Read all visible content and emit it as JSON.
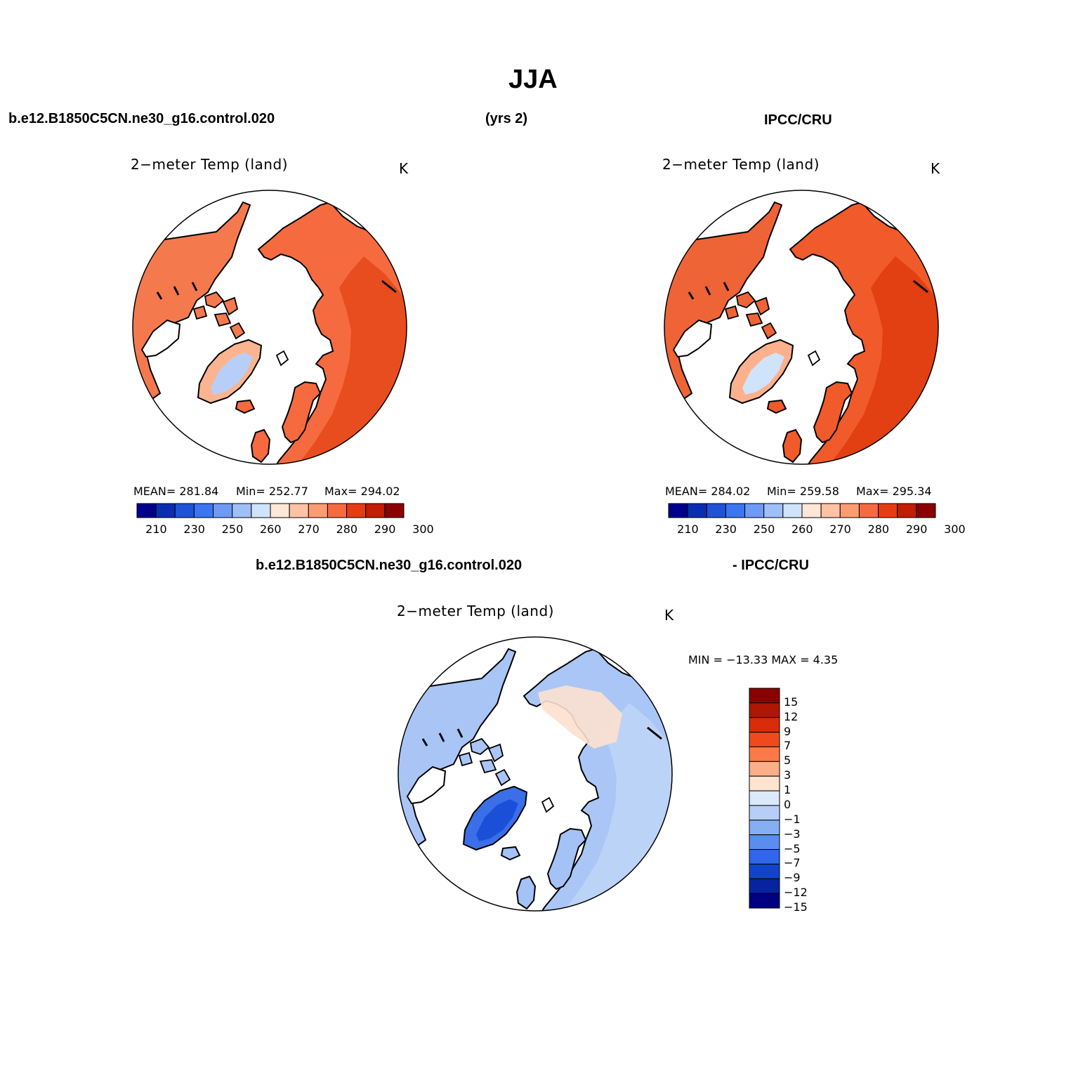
{
  "title": "JJA",
  "header_left": "b.e12.B1850C5CN.ne30_g16.control.020",
  "header_mid": "(yrs 2)",
  "header_right": "IPCC/CRU",
  "diff_header_left": "b.e12.B1850C5CN.ne30_g16.control.020",
  "diff_header_right": "- IPCC/CRU",
  "colors": {
    "abs_scale": [
      "#00008c",
      "#0a2eb0",
      "#1f52d8",
      "#3d74f0",
      "#6e9af5",
      "#9ec0f7",
      "#cfe3fa",
      "#ffe6d6",
      "#ffc2a3",
      "#fc9c73",
      "#f56b3f",
      "#e63c14",
      "#c21d05",
      "#8a0000"
    ],
    "diff_scale": [
      "#8a0000",
      "#b01604",
      "#d82c0a",
      "#f0491e",
      "#fb7a4a",
      "#fdae88",
      "#fee3cf",
      "#dbe9fb",
      "#b7cff8",
      "#86aff3",
      "#5b8cf0",
      "#2f66ea",
      "#1144c8",
      "#0624a0",
      "#000080"
    ]
  },
  "chart_data": [
    {
      "type": "map",
      "projection": "north-polar-stereographic",
      "title": "2−meter Temp (land)",
      "units": "K",
      "stats": {
        "mean": "MEAN=  281.84",
        "min": "Min=  252.77",
        "max": "Max=  294.02"
      },
      "colorbar_ticks": [
        "210",
        "230",
        "250",
        "260",
        "270",
        "280",
        "290",
        "300"
      ]
    },
    {
      "type": "map",
      "projection": "north-polar-stereographic",
      "title": "2−meter Temp (land)",
      "units": "K",
      "stats": {
        "mean": "MEAN=  284.02",
        "min": "Min=  259.58",
        "max": "Max=  295.34"
      },
      "colorbar_ticks": [
        "210",
        "230",
        "250",
        "260",
        "270",
        "280",
        "290",
        "300"
      ]
    },
    {
      "type": "map",
      "projection": "north-polar-stereographic",
      "title": "2−meter Temp (land)",
      "units": "K",
      "minmax": "MIN = −13.33 MAX =     4.35",
      "colorbar_ticks": [
        "15",
        "12",
        "9",
        "7",
        "5",
        "3",
        "1",
        "0",
        "−1",
        "−3",
        "−5",
        "−7",
        "−9",
        "−12",
        "−15"
      ]
    }
  ]
}
